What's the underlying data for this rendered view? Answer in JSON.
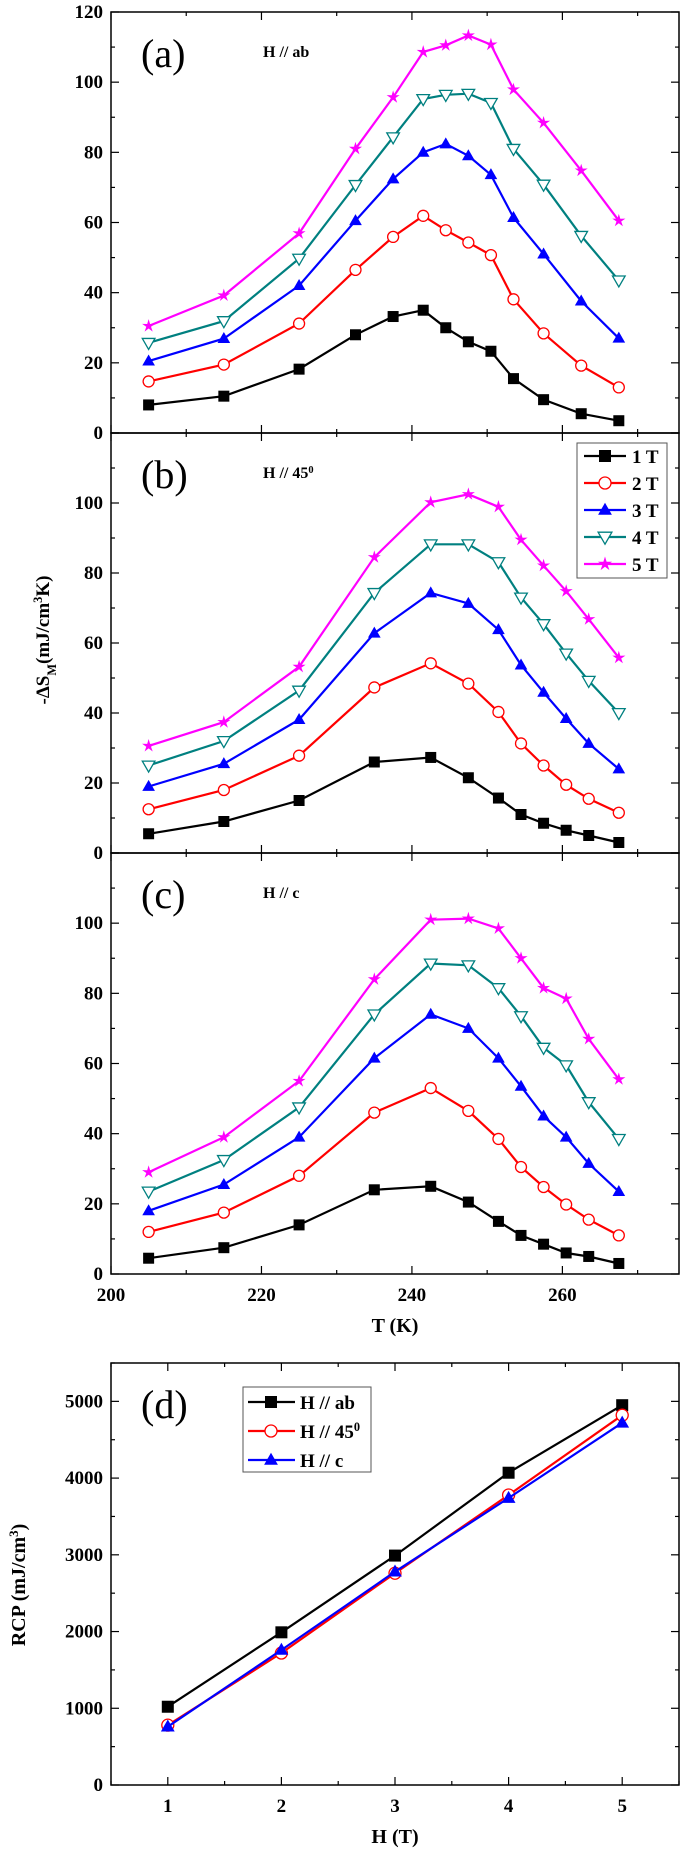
{
  "chart_data": [
    {
      "type": "line",
      "panel_label": "(a)",
      "annotation": {
        "text": "H // ab",
        "sup": ""
      },
      "xlim": [
        200,
        275.5
      ],
      "ylim": [
        0,
        120
      ],
      "yticks": [
        "0",
        "20",
        "40",
        "60",
        "80",
        "100",
        "120"
      ],
      "x": [
        205,
        215,
        225,
        232.5,
        237.5,
        241.5,
        244.5,
        247.5,
        250.5,
        253.5,
        257.5,
        262.5,
        267.5
      ],
      "series": [
        {
          "name": "1 T",
          "values": [
            8,
            10.5,
            18.2,
            28,
            33.2,
            35,
            30,
            26,
            23.3,
            15.5,
            9.5,
            5.5,
            3.5
          ]
        },
        {
          "name": "2 T",
          "values": [
            14.7,
            19.5,
            31.2,
            46.5,
            55.9,
            61.9,
            57.8,
            54.3,
            50.7,
            38.1,
            28.4,
            19.2,
            13
          ]
        },
        {
          "name": "3 T",
          "values": [
            20.5,
            26.9,
            42,
            60.5,
            72.4,
            80,
            82.4,
            79,
            73.6,
            61.4,
            51,
            37.6,
            27
          ]
        },
        {
          "name": "4 T",
          "values": [
            25.7,
            31.9,
            49.7,
            70.7,
            84.3,
            95.2,
            96.4,
            96.7,
            94.1,
            81,
            70.8,
            56.2,
            43.5
          ]
        },
        {
          "name": "5 T",
          "values": [
            30.5,
            39.2,
            56.9,
            81,
            95.7,
            108.6,
            110.5,
            113.3,
            110.7,
            97.9,
            88.4,
            74.8,
            60.5
          ]
        }
      ]
    },
    {
      "type": "line",
      "panel_label": "(b)",
      "annotation": {
        "text": "H // 45",
        "sup": "0"
      },
      "xlim": [
        200,
        275.5
      ],
      "ylim": [
        0,
        120
      ],
      "yticks": [
        "0",
        "20",
        "40",
        "60",
        "80",
        "100"
      ],
      "ylabel": {
        "pre": "-ΔS",
        "sub": "M",
        "mid": "(mJ/cm",
        "sup": "3",
        "post": "K)"
      },
      "legend": {
        "position": "top-right",
        "entries": [
          "1 T",
          "2 T",
          "3 T",
          "4 T",
          "5 T"
        ]
      },
      "x": [
        205,
        215,
        225,
        235,
        242.5,
        247.5,
        251.5,
        254.5,
        257.5,
        260.5,
        263.5,
        267.5
      ],
      "series": [
        {
          "name": "1 T",
          "values": [
            5.5,
            9,
            15,
            26,
            27.3,
            21.5,
            15.7,
            11,
            8.5,
            6.5,
            5,
            3
          ]
        },
        {
          "name": "2 T",
          "values": [
            12.5,
            18,
            27.8,
            47.3,
            54.2,
            48.4,
            40.3,
            31.3,
            25,
            19.5,
            15.5,
            11.5
          ]
        },
        {
          "name": "3 T",
          "values": [
            19,
            25.5,
            38.1,
            62.8,
            74.3,
            71.3,
            63.8,
            53.7,
            45.9,
            38.4,
            31.3,
            24
          ]
        },
        {
          "name": "4 T",
          "values": [
            25,
            32,
            46.4,
            74.3,
            88.2,
            88.2,
            83.1,
            73,
            65.4,
            57,
            49.2,
            40
          ]
        },
        {
          "name": "5 T",
          "values": [
            30.6,
            37.4,
            53.2,
            84.5,
            100.2,
            102.5,
            98.9,
            89.5,
            82.1,
            74.8,
            66.8,
            55.8
          ]
        }
      ]
    },
    {
      "type": "line",
      "panel_label": "(c)",
      "annotation": {
        "text": "H // c",
        "sup": ""
      },
      "xlim": [
        200,
        275.5
      ],
      "ylim": [
        0,
        120
      ],
      "yticks": [
        "0",
        "20",
        "40",
        "60",
        "80",
        "100"
      ],
      "xticks": [
        "200",
        "220",
        "240",
        "260"
      ],
      "xlabel": "T (K)",
      "x": [
        205,
        215,
        225,
        235,
        242.5,
        247.5,
        251.5,
        254.5,
        257.5,
        260.5,
        263.5,
        267.5
      ],
      "series": [
        {
          "name": "1 T",
          "values": [
            4.5,
            7.5,
            14,
            24,
            25,
            20.5,
            15,
            11,
            8.5,
            6,
            5,
            3
          ]
        },
        {
          "name": "2 T",
          "values": [
            12,
            17.5,
            28,
            46,
            53,
            46.5,
            38.5,
            30.5,
            24.8,
            19.8,
            15.5,
            11
          ]
        },
        {
          "name": "3 T",
          "values": [
            18,
            25.5,
            39,
            61.5,
            74,
            70,
            61.5,
            53.5,
            45,
            39,
            31.5,
            23.5
          ]
        },
        {
          "name": "4 T",
          "values": [
            23.5,
            32.5,
            47.5,
            74,
            88.5,
            88,
            81.5,
            73.5,
            64.5,
            59.5,
            49,
            38.5
          ]
        },
        {
          "name": "5 T",
          "values": [
            29,
            39,
            55,
            84,
            101,
            101.3,
            98.5,
            90,
            81.5,
            78.5,
            67,
            55.5
          ]
        }
      ]
    },
    {
      "type": "line",
      "panel_label": "(d)",
      "xlim": [
        0.5,
        5.5
      ],
      "ylim": [
        0,
        5500
      ],
      "yticks": [
        "0",
        "1000",
        "2000",
        "3000",
        "4000",
        "5000"
      ],
      "xticks": [
        "1",
        "2",
        "3",
        "4",
        "5"
      ],
      "xlabel": "H (T)",
      "ylabel": {
        "pre": "RCP (mJ/cm",
        "sup": "3",
        "post": ")"
      },
      "legend": {
        "position": "top-left",
        "entries": [
          {
            "text": "H // ab",
            "sup": ""
          },
          {
            "text": "H // 45",
            "sup": "0"
          },
          {
            "text": "H // c",
            "sup": ""
          }
        ]
      },
      "x": [
        1,
        2,
        3,
        4,
        5
      ],
      "series": [
        {
          "name": "H // ab",
          "values": [
            1020,
            1990,
            2990,
            4070,
            4950
          ]
        },
        {
          "name": "H // 45⁰",
          "values": [
            780,
            1720,
            2760,
            3780,
            4820
          ]
        },
        {
          "name": "H // c",
          "values": [
            760,
            1760,
            2780,
            3740,
            4720
          ]
        }
      ]
    }
  ],
  "colors": {
    "1 T": "#000000",
    "2 T": "#ff0000",
    "3 T": "#0000ff",
    "4 T": "#008080",
    "5 T": "#ff00ff"
  },
  "markers": {
    "1 T": "filled-square",
    "2 T": "open-circle",
    "3 T": "filled-triangle-up",
    "4 T": "open-triangle-down",
    "5 T": "filled-star"
  },
  "panel_d_styles": [
    {
      "color": "#000000",
      "marker": "filled-square"
    },
    {
      "color": "#ff0000",
      "marker": "open-circle"
    },
    {
      "color": "#0000ff",
      "marker": "filled-triangle-up"
    }
  ]
}
